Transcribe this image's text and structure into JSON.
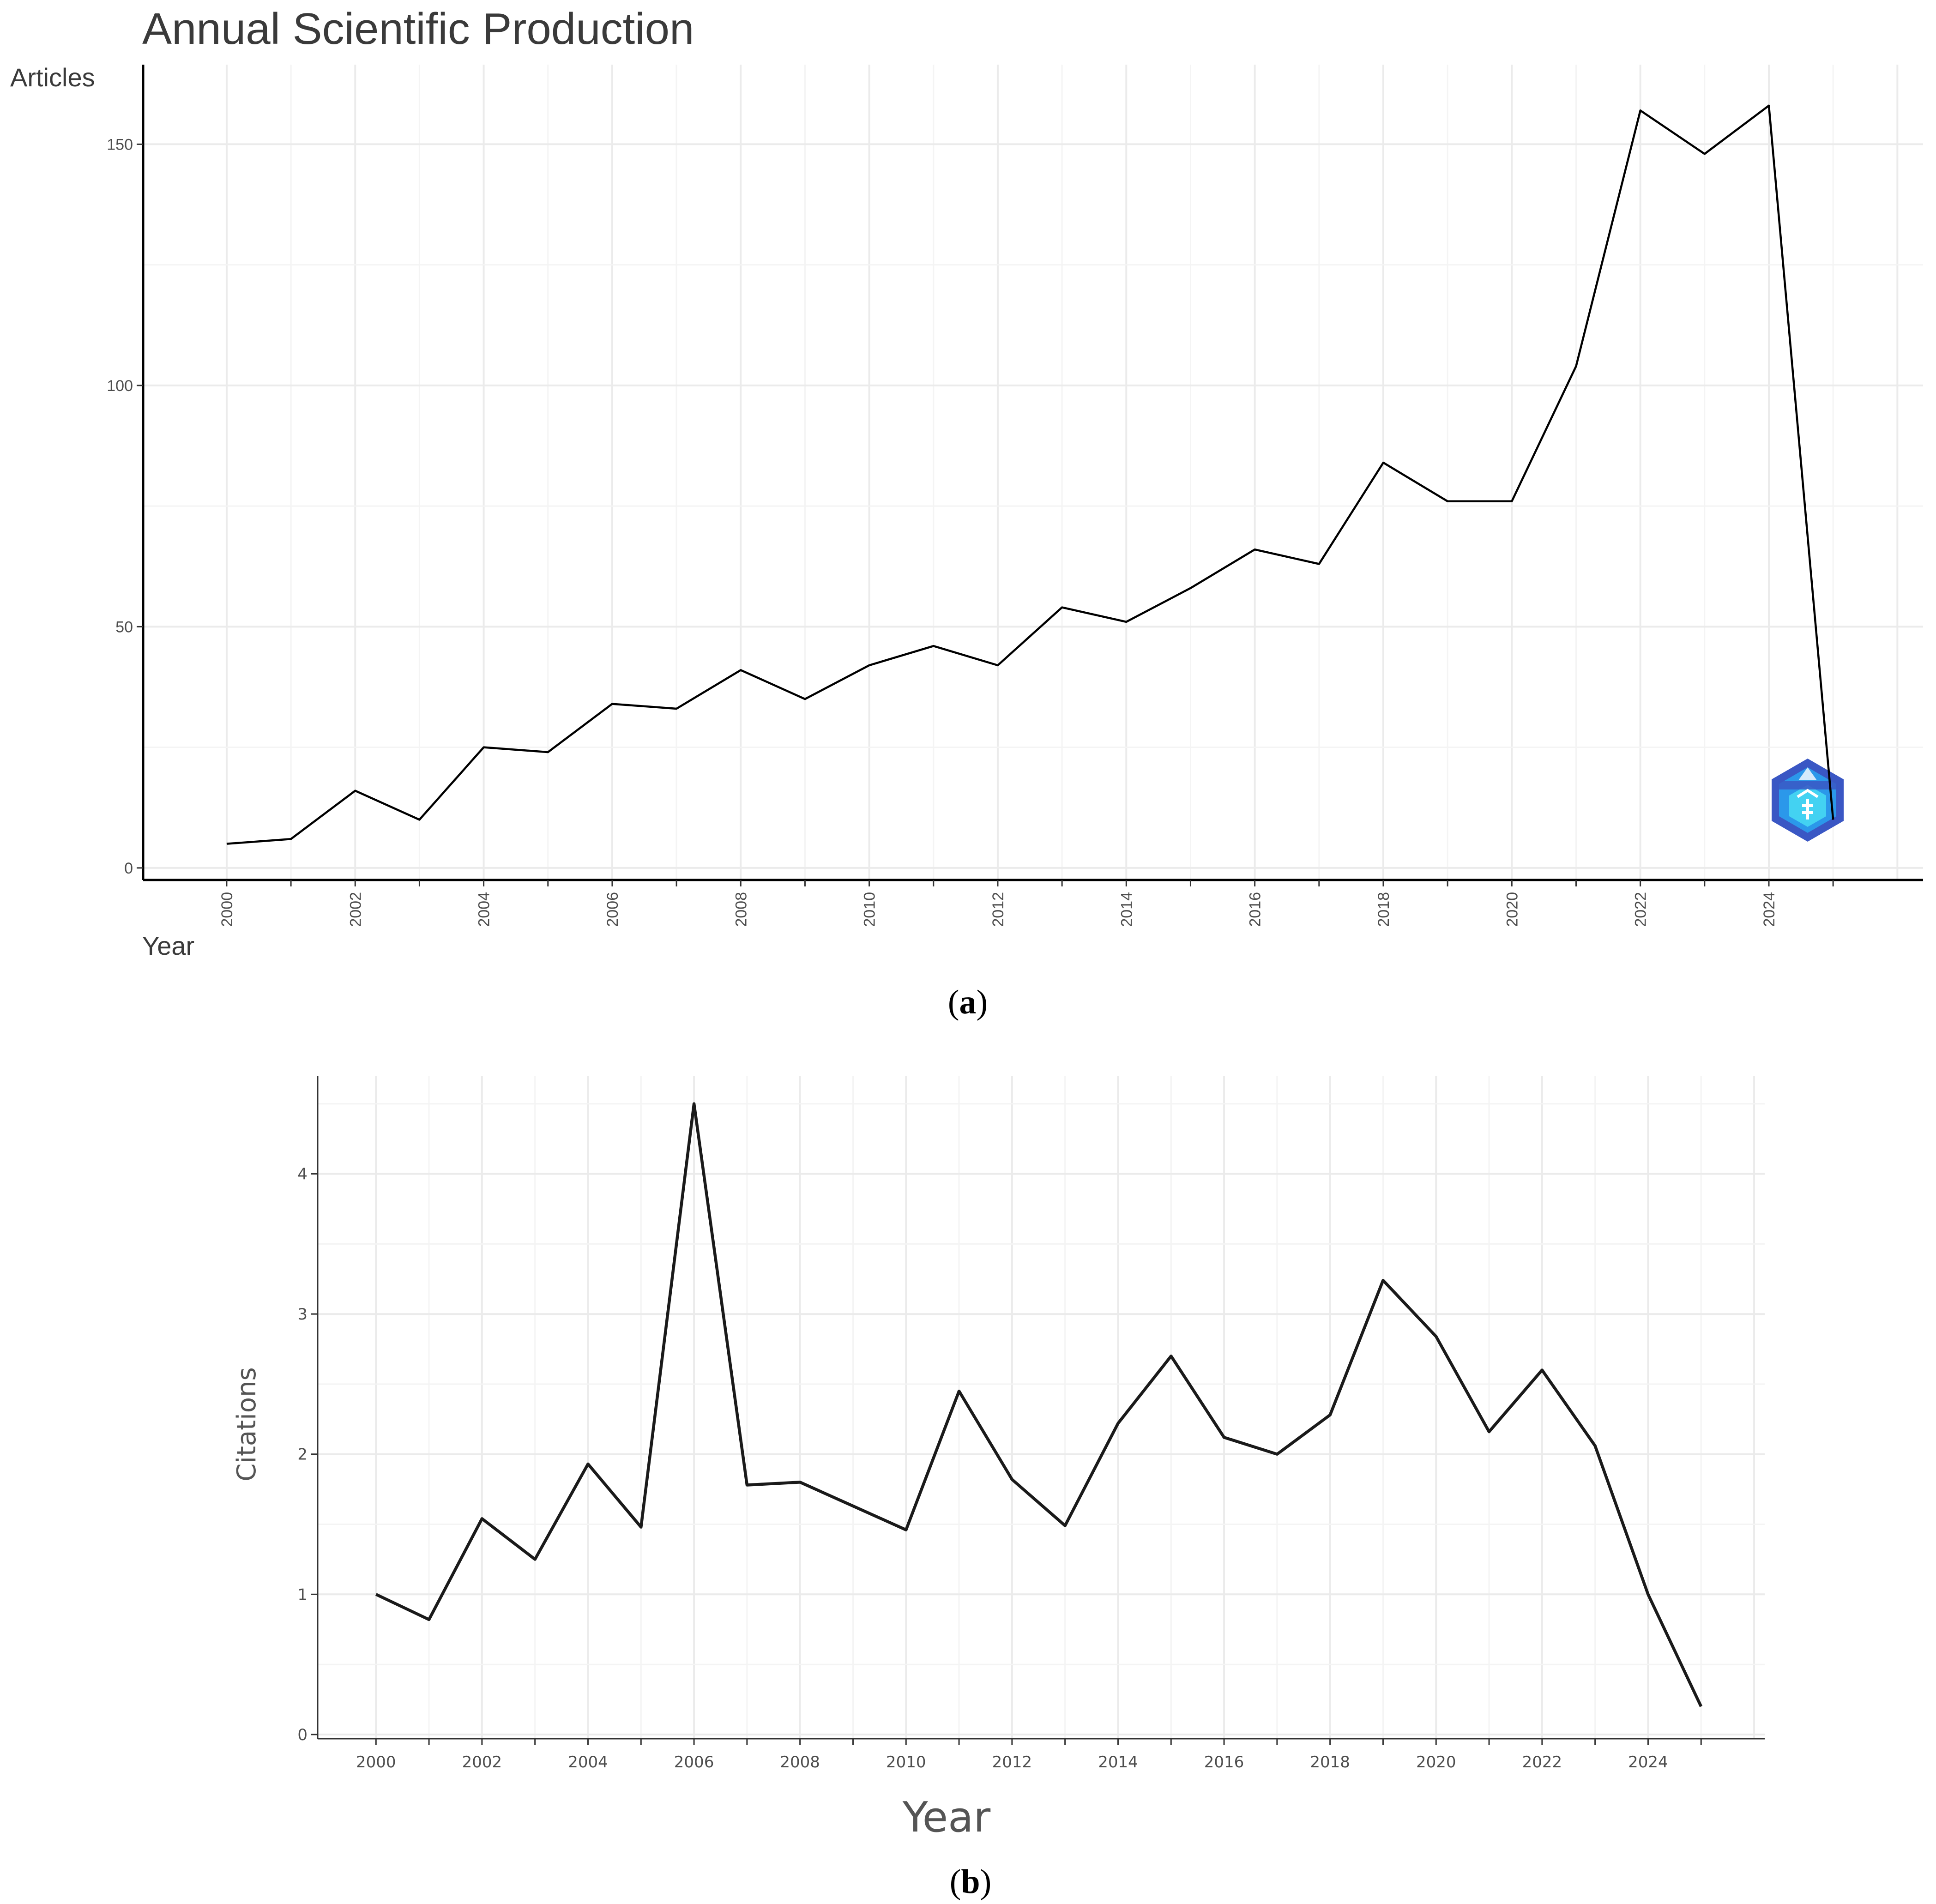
{
  "chart_data": [
    {
      "panel": "a",
      "type": "line",
      "title": "Annual Scientific Production",
      "xlabel": "Year",
      "ylabel": "Articles",
      "x": [
        2000,
        2001,
        2002,
        2003,
        2004,
        2005,
        2006,
        2007,
        2008,
        2009,
        2010,
        2011,
        2012,
        2013,
        2014,
        2015,
        2016,
        2017,
        2018,
        2019,
        2020,
        2021,
        2022,
        2023,
        2024,
        2025
      ],
      "values": [
        5,
        6,
        16,
        10,
        25,
        24,
        34,
        33,
        41,
        35,
        42,
        46,
        42,
        54,
        51,
        58,
        66,
        63,
        84,
        76,
        76,
        104,
        157,
        148,
        158,
        10
      ],
      "xticks": [
        "2000",
        "2002",
        "2004",
        "2006",
        "2008",
        "2010",
        "2012",
        "2014",
        "2016",
        "2018",
        "2020",
        "2022",
        "2024"
      ],
      "yticks": [
        "0",
        "50",
        "100",
        "150"
      ],
      "xlim": [
        1998.7,
        2026.4
      ],
      "ylim": [
        -2.5,
        166.5
      ],
      "grid": true,
      "watermark": "bibliometrix-logo"
    },
    {
      "panel": "b",
      "type": "line",
      "title": "",
      "xlabel": "Year",
      "ylabel": "Citations",
      "x": [
        2000,
        2001,
        2002,
        2003,
        2004,
        2005,
        2006,
        2007,
        2008,
        2009,
        2010,
        2011,
        2012,
        2013,
        2014,
        2015,
        2016,
        2017,
        2018,
        2019,
        2020,
        2021,
        2022,
        2023,
        2024,
        2025
      ],
      "values": [
        1.0,
        0.82,
        1.54,
        1.25,
        1.93,
        1.48,
        4.5,
        1.78,
        1.8,
        1.63,
        1.46,
        2.45,
        1.82,
        1.49,
        2.22,
        2.7,
        2.12,
        2.0,
        2.28,
        3.24,
        2.84,
        2.16,
        2.6,
        2.06,
        1.0,
        0.2
      ],
      "xticks": [
        "2000",
        "2002",
        "2004",
        "2006",
        "2008",
        "2010",
        "2012",
        "2014",
        "2016",
        "2018",
        "2020",
        "2022",
        "2024"
      ],
      "yticks": [
        "0",
        "1",
        "2",
        "3",
        "4"
      ],
      "xlim": [
        1998.9,
        2026.2
      ],
      "ylim": [
        -0.03,
        4.7
      ],
      "grid": true
    }
  ],
  "captions": {
    "a": "a",
    "b": "b"
  },
  "icons": {
    "watermark": "bibliometrix-hexagon-logo"
  },
  "colors": {
    "line": "#000000",
    "grid": "#ebebeb",
    "logo_dark": "#3a57c4",
    "logo_light": "#3fd0f0"
  }
}
